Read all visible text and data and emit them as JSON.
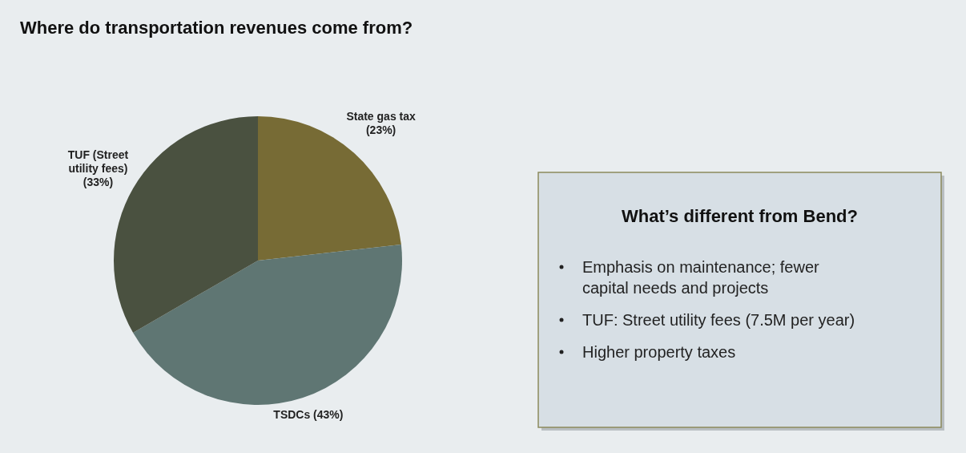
{
  "chart_data": [
    {
      "type": "pie",
      "title": "Where do transportation revenues come from?",
      "categories": [
        "State gas tax",
        "TSDCs",
        "TUF (Street utility fees)"
      ],
      "values": [
        23,
        43,
        33
      ],
      "colors": [
        "#776b35",
        "#5f7673",
        "#4a5140"
      ],
      "value_labels": [
        "(23%)",
        "(43%)",
        "(33%)"
      ]
    },
    {
      "type": "other",
      "title": "What’s different from Bend?",
      "annotations": [
        "Emphasis on maintenance; fewer capital needs and projects",
        "TUF: Street utility fees (7.5M per year)",
        "Higher property taxes"
      ]
    }
  ]
}
